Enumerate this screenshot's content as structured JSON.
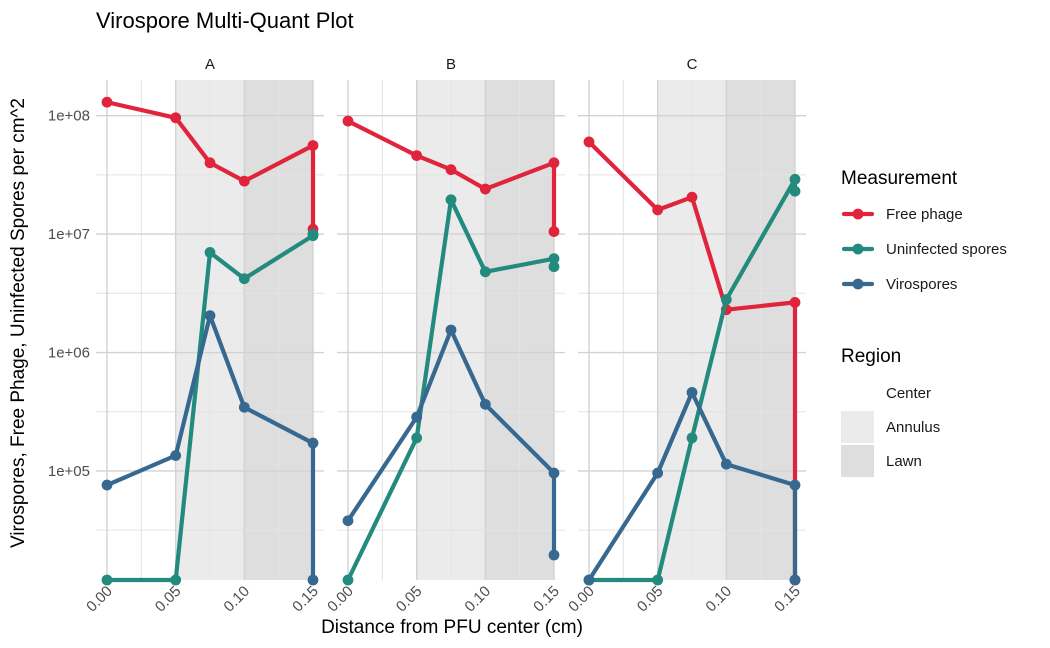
{
  "chart_data": {
    "type": "line",
    "title": "Virospore Multi-Quant Plot",
    "xlabel": "Distance from PFU center (cm)",
    "ylabel": "Virospores, Free Phage, Uninfected Spores per cm^2",
    "y_scale": "log10",
    "ylim": [
      12000,
      200000000
    ],
    "xlim": [
      0,
      0.15
    ],
    "x_ticks": [
      0,
      0.05,
      0.1,
      0.15
    ],
    "x_tick_labels": [
      "0.00",
      "0.05",
      "0.10",
      "0.15"
    ],
    "y_ticks": [
      100000,
      1000000,
      10000000,
      100000000
    ],
    "y_tick_labels": [
      "1e+05",
      "1e+06",
      "1e+07",
      "1e+08"
    ],
    "grid": true,
    "legend_position": "right",
    "panels": [
      "A",
      "B",
      "C"
    ],
    "regions": [
      {
        "name": "Center",
        "color": "#ffffff",
        "x_range": [
          0,
          0.05
        ]
      },
      {
        "name": "Annulus",
        "color": "#ebebeb",
        "x_range": [
          0.05,
          0.1
        ]
      },
      {
        "name": "Lawn",
        "color": "#dedede",
        "x_range": [
          0.1,
          0.15
        ]
      }
    ],
    "series": [
      {
        "name": "Free phage",
        "color": "#e0243b",
        "panels": {
          "A": [
            [
              0,
              130000000
            ],
            [
              0.05,
              96000000
            ],
            [
              0.075,
              40000000
            ],
            [
              0.1,
              28000000
            ],
            [
              0.15,
              56000000
            ],
            [
              0.15,
              11000000
            ]
          ],
          "B": [
            [
              0,
              90000000
            ],
            [
              0.05,
              46000000
            ],
            [
              0.075,
              35000000
            ],
            [
              0.1,
              24000000
            ],
            [
              0.15,
              40000000
            ],
            [
              0.15,
              10500000
            ]
          ],
          "C": [
            [
              0,
              60000000
            ],
            [
              0.05,
              16000000
            ],
            [
              0.075,
              20500000
            ],
            [
              0.1,
              2300000
            ],
            [
              0.15,
              2650000
            ],
            [
              0.15,
              12000
            ]
          ]
        }
      },
      {
        "name": "Uninfected spores",
        "color": "#228b7d",
        "panels": {
          "A": [
            [
              0,
              12000
            ],
            [
              0.05,
              12000
            ],
            [
              0.075,
              7000000
            ],
            [
              0.1,
              4200000
            ],
            [
              0.15,
              9700000
            ],
            [
              0.15,
              10000000
            ]
          ],
          "B": [
            [
              0,
              12000
            ],
            [
              0.05,
              190000
            ],
            [
              0.075,
              19500000
            ],
            [
              0.1,
              4800000
            ],
            [
              0.15,
              6200000
            ],
            [
              0.15,
              5300000
            ]
          ],
          "C": [
            [
              0,
              12000
            ],
            [
              0.05,
              12000
            ],
            [
              0.075,
              190000
            ],
            [
              0.1,
              2800000
            ],
            [
              0.15,
              29000000
            ],
            [
              0.15,
              23000000
            ]
          ]
        }
      },
      {
        "name": "Virospores",
        "color": "#37688f",
        "panels": {
          "A": [
            [
              0,
              76000
            ],
            [
              0.05,
              135000
            ],
            [
              0.075,
              2050000
            ],
            [
              0.1,
              345000
            ],
            [
              0.15,
              172000
            ],
            [
              0.15,
              12000
            ]
          ],
          "B": [
            [
              0,
              38000
            ],
            [
              0.05,
              285000
            ],
            [
              0.075,
              1550000
            ],
            [
              0.1,
              365000
            ],
            [
              0.15,
              96000
            ],
            [
              0.15,
              19500
            ]
          ],
          "C": [
            [
              0,
              12000
            ],
            [
              0.05,
              96000
            ],
            [
              0.075,
              460000
            ],
            [
              0.1,
              114000
            ],
            [
              0.15,
              76000
            ],
            [
              0.15,
              12000
            ]
          ]
        }
      }
    ],
    "legends": [
      {
        "title": "Measurement",
        "entries": [
          "Free phage",
          "Uninfected spores",
          "Virospores"
        ]
      },
      {
        "title": "Region",
        "entries": [
          "Center",
          "Annulus",
          "Lawn"
        ]
      }
    ]
  }
}
